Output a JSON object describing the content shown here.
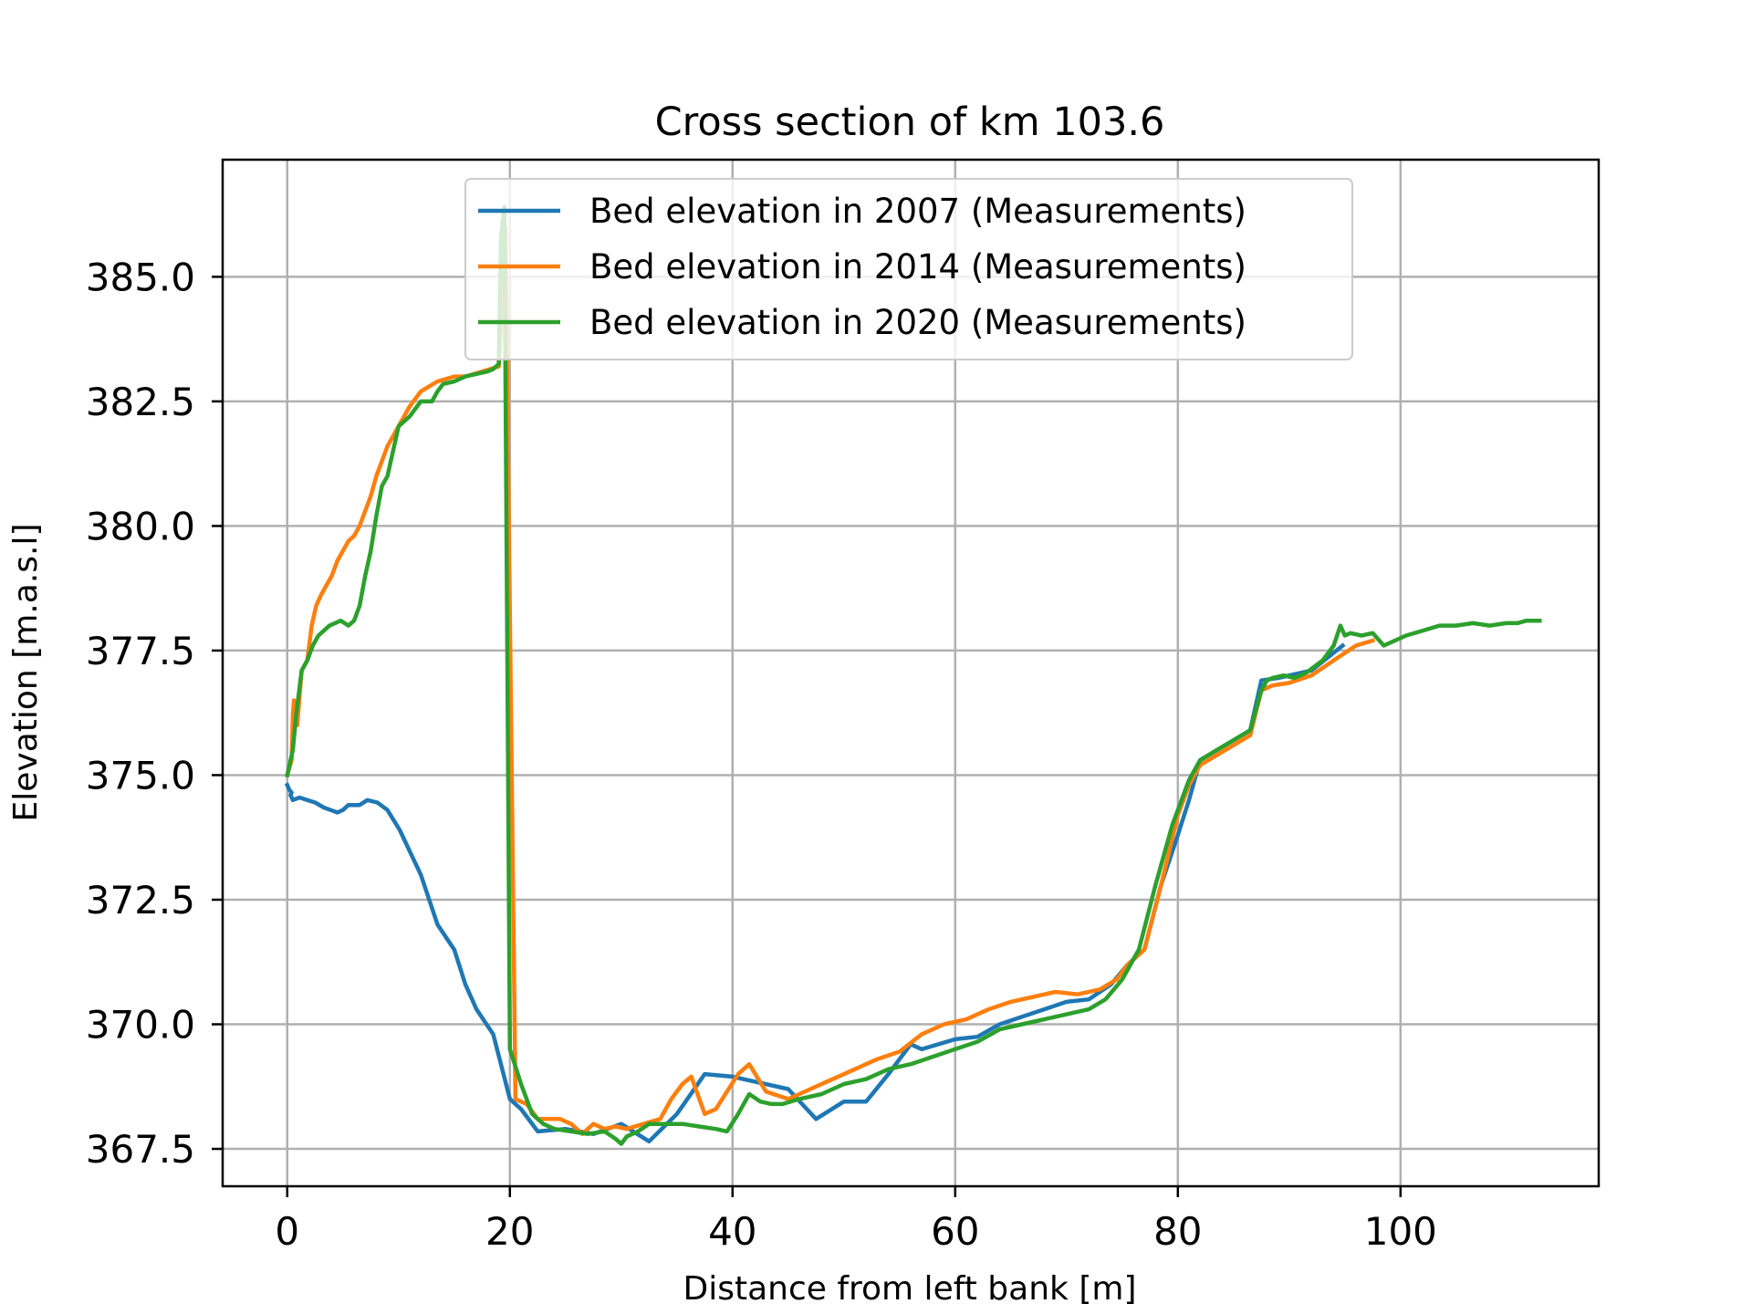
{
  "chart_data": {
    "type": "line",
    "title": "Cross section of km 103.6",
    "xlabel": "Distance from left bank [m]",
    "ylabel": "Elevation [m.a.s.l]",
    "xlim": [
      -5.8,
      117.8
    ],
    "ylim": [
      366.75,
      387.35
    ],
    "x_ticks": [
      0,
      20,
      40,
      60,
      80,
      100
    ],
    "y_ticks": [
      367.5,
      370.0,
      372.5,
      375.0,
      377.5,
      380.0,
      382.5,
      385.0
    ],
    "x_tick_labels": [
      "0",
      "20",
      "40",
      "60",
      "80",
      "100"
    ],
    "y_tick_labels": [
      "367.5",
      "370.0",
      "372.5",
      "375.0",
      "377.5",
      "380.0",
      "382.5",
      "385.0"
    ],
    "grid": true,
    "legend_position": "upper center",
    "series": [
      {
        "name": "Bed elevation in 2007 (Measurements)",
        "color": "#1f77b4",
        "x": [
          0,
          0.2,
          0.4,
          0.3,
          0.5,
          1.1,
          1.8,
          2.5,
          3.3,
          3.9,
          4.5,
          5.0,
          5.5,
          6.5,
          7.2,
          8.1,
          9.0,
          10.1,
          12.0,
          13.5,
          15.0,
          16.0,
          17.0,
          18.5,
          20.0,
          21.0,
          22.5,
          25.0,
          27.5,
          30.0,
          32.5,
          35.0,
          37.5,
          40.0,
          45.0,
          47.5,
          50.0,
          52.0,
          54.0,
          56.0,
          57.0,
          60.0,
          62.0,
          64.0,
          66.0,
          68.0,
          70.0,
          72.0,
          74.0,
          75.5,
          77.0,
          78.5,
          80.0,
          81.0,
          82.0,
          83.5,
          85.0,
          86.5,
          87.5,
          89.0,
          92.0,
          94.8
        ],
        "values": [
          374.8,
          374.7,
          374.65,
          374.6,
          374.5,
          374.55,
          374.5,
          374.45,
          374.35,
          374.3,
          374.25,
          374.3,
          374.4,
          374.4,
          374.5,
          374.45,
          374.3,
          373.9,
          373.0,
          372.0,
          371.5,
          370.8,
          370.3,
          369.8,
          368.5,
          368.3,
          367.85,
          367.9,
          367.8,
          368.0,
          367.65,
          368.2,
          369.0,
          368.95,
          368.7,
          368.1,
          368.45,
          368.45,
          369.0,
          369.6,
          369.5,
          369.7,
          369.75,
          370.0,
          370.15,
          370.3,
          370.45,
          370.5,
          370.8,
          371.2,
          371.5,
          372.8,
          373.8,
          374.5,
          375.3,
          375.5,
          375.7,
          375.9,
          376.9,
          376.95,
          377.1,
          377.6
        ]
      },
      {
        "name": "Bed elevation in 2014 (Measurements)",
        "color": "#ff7f0e",
        "x": [
          0,
          0.4,
          0.5,
          0.6,
          0.9,
          1.3,
          1.8,
          2.2,
          2.6,
          3.0,
          3.5,
          4.0,
          4.5,
          5.0,
          5.5,
          6.0,
          6.5,
          7.0,
          7.5,
          8.0,
          8.5,
          9.0,
          10.0,
          11.0,
          12.0,
          13.5,
          15.0,
          16.0,
          17.5,
          19.0,
          19.6,
          20.5,
          21.5,
          22.5,
          24.5,
          25.5,
          26.5,
          27.5,
          28.5,
          29.5,
          30.5,
          32.0,
          33.5,
          34.5,
          35.5,
          36.3,
          37.5,
          38.5,
          40.5,
          41.5,
          43.0,
          45.0,
          47.0,
          49.0,
          51.0,
          53.0,
          55.0,
          57.0,
          59.0,
          61.0,
          63.0,
          65.0,
          67.0,
          69.0,
          71.0,
          73.0,
          74.5,
          75.5,
          77.0,
          78.5,
          80.0,
          81.0,
          82.0,
          83.5,
          85.0,
          86.5,
          87.5,
          88.5,
          90.0,
          92.0,
          94.0,
          96.0,
          97.5
        ],
        "values": [
          375.0,
          375.3,
          376.2,
          376.5,
          376.0,
          377.1,
          377.3,
          378.0,
          378.4,
          378.6,
          378.8,
          379.0,
          379.3,
          379.5,
          379.7,
          379.8,
          380.0,
          380.3,
          380.6,
          381.0,
          381.3,
          381.6,
          382.0,
          382.4,
          382.7,
          382.9,
          383.0,
          383.0,
          383.1,
          383.2,
          386.0,
          368.5,
          368.4,
          368.1,
          368.1,
          368.0,
          367.8,
          368.0,
          367.9,
          367.95,
          367.9,
          368.0,
          368.1,
          368.5,
          368.8,
          368.95,
          368.2,
          368.3,
          369.0,
          369.2,
          368.65,
          368.5,
          368.7,
          368.9,
          369.1,
          369.3,
          369.45,
          369.8,
          370.0,
          370.1,
          370.3,
          370.45,
          370.55,
          370.65,
          370.6,
          370.7,
          370.9,
          371.2,
          371.5,
          372.8,
          374.2,
          374.8,
          375.2,
          375.4,
          375.6,
          375.8,
          376.7,
          376.8,
          376.85,
          377.0,
          377.3,
          377.6,
          377.7
        ]
      },
      {
        "name": "Bed elevation in 2020 (Measurements)",
        "color": "#2ca02c",
        "x": [
          0,
          0.5,
          0.8,
          1.3,
          1.8,
          2.3,
          2.8,
          3.3,
          3.8,
          4.3,
          4.8,
          5.5,
          6.0,
          6.5,
          7.0,
          7.5,
          8.0,
          8.5,
          9.0,
          9.5,
          10.0,
          10.5,
          11.0,
          12.0,
          13.0,
          13.5,
          14.0,
          15.0,
          16.0,
          17.0,
          18.0,
          18.5,
          19.0,
          19.2,
          19.5,
          20.0,
          21.0,
          22.0,
          23.0,
          24.0,
          25.5,
          27.0,
          28.5,
          29.5,
          30.0,
          30.5,
          31.5,
          32.5,
          34.0,
          35.5,
          37.0,
          38.5,
          39.5,
          40.5,
          41.5,
          42.5,
          43.5,
          44.5,
          46.0,
          48.0,
          50.0,
          52.0,
          54.0,
          56.0,
          58.0,
          60.0,
          62.0,
          64.0,
          66.0,
          68.0,
          70.0,
          72.0,
          73.5,
          75.0,
          76.5,
          78.0,
          79.5,
          81.0,
          82.0,
          83.5,
          85.0,
          86.5,
          87.5,
          88.0,
          88.5,
          89.5,
          90.5,
          91.5,
          93.0,
          94.0,
          94.6,
          95.0,
          95.5,
          96.5,
          97.5,
          98.5,
          99.5,
          100.5,
          102.0,
          103.5,
          105.0,
          106.5,
          108.0,
          109.5,
          110.5,
          111.3,
          111.8,
          112.5
        ],
        "values": [
          375.0,
          375.5,
          376.2,
          377.1,
          377.3,
          377.6,
          377.8,
          377.9,
          378.0,
          378.05,
          378.1,
          378.0,
          378.1,
          378.4,
          379.0,
          379.5,
          380.2,
          380.8,
          381.0,
          381.5,
          382.0,
          382.1,
          382.2,
          382.5,
          382.5,
          382.7,
          382.85,
          382.9,
          383.0,
          383.05,
          383.1,
          383.15,
          383.25,
          385.8,
          386.4,
          369.5,
          368.8,
          368.2,
          368.0,
          367.9,
          367.85,
          367.8,
          367.85,
          367.7,
          367.6,
          367.75,
          367.85,
          368.0,
          368.0,
          368.0,
          367.95,
          367.9,
          367.85,
          368.2,
          368.6,
          368.45,
          368.4,
          368.4,
          368.5,
          368.6,
          368.8,
          368.9,
          369.1,
          369.2,
          369.35,
          369.5,
          369.65,
          369.9,
          370.0,
          370.1,
          370.2,
          370.3,
          370.5,
          370.9,
          371.5,
          372.8,
          374.0,
          374.9,
          375.3,
          375.5,
          375.7,
          375.9,
          376.7,
          376.9,
          376.95,
          377.0,
          376.95,
          377.05,
          377.3,
          377.6,
          378.0,
          377.8,
          377.85,
          377.8,
          377.85,
          377.6,
          377.7,
          377.8,
          377.9,
          378.0,
          378.0,
          378.05,
          378.0,
          378.05,
          378.05,
          378.1,
          378.1,
          378.1
        ]
      }
    ]
  }
}
